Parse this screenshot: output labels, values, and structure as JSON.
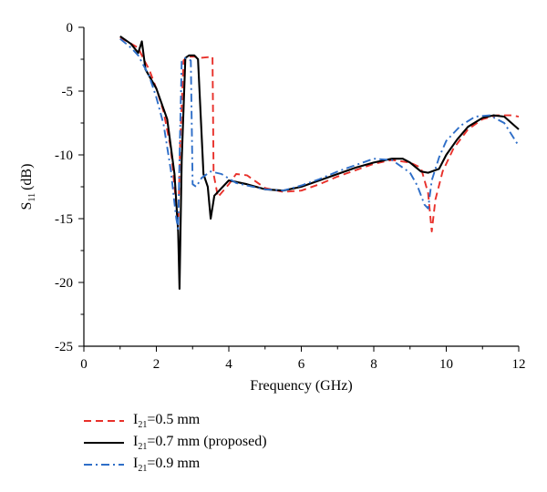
{
  "chart_data": {
    "type": "line",
    "xlabel": "Frequency (GHz)",
    "ylabel_main": "S",
    "ylabel_sub": "11",
    "ylabel_unit": "(dB)",
    "xlim": [
      0,
      12
    ],
    "ylim": [
      -25,
      0
    ],
    "xticks": [
      0,
      2,
      4,
      6,
      8,
      10,
      12
    ],
    "yticks": [
      0,
      -5,
      -10,
      -15,
      -20,
      -25
    ],
    "grid": false,
    "legend_position": "bottom-left",
    "series": [
      {
        "name_prefix": "I",
        "name_sub": "21",
        "name_suffix": "=0.5 mm",
        "color": "#e8302a",
        "dash": "dashed",
        "x": [
          1.0,
          1.5,
          1.65,
          1.8,
          2.0,
          2.2,
          2.4,
          2.55,
          2.6,
          2.66,
          2.75,
          2.85,
          2.95,
          3.05,
          3.2,
          3.55,
          3.58,
          3.7,
          4.0,
          4.2,
          4.5,
          5.0,
          5.5,
          6.0,
          6.5,
          7.0,
          7.5,
          8.0,
          8.5,
          9.0,
          9.3,
          9.5,
          9.6,
          9.7,
          9.9,
          10.2,
          10.6,
          11.0,
          11.4,
          11.8,
          12.0
        ],
        "y": [
          -0.8,
          -1.6,
          -2.5,
          -3.3,
          -4.8,
          -6.6,
          -9.5,
          -14.0,
          -15.6,
          -9.0,
          -2.6,
          -2.3,
          -2.3,
          -2.3,
          -2.4,
          -2.3,
          -11.5,
          -13.3,
          -12.3,
          -11.5,
          -11.6,
          -12.6,
          -12.9,
          -12.8,
          -12.3,
          -11.7,
          -11.2,
          -10.7,
          -10.4,
          -10.6,
          -11.0,
          -13.0,
          -16.0,
          -13.5,
          -11.3,
          -9.5,
          -8.0,
          -7.2,
          -6.9,
          -6.9,
          -7.0
        ]
      },
      {
        "name_prefix": "I",
        "name_sub": "21",
        "name_suffix": "=0.7 mm (proposed)",
        "color": "#000000",
        "dash": "solid",
        "x": [
          1.0,
          1.3,
          1.5,
          1.6,
          1.7,
          2.0,
          2.3,
          2.5,
          2.6,
          2.64,
          2.7,
          2.8,
          2.9,
          3.05,
          3.15,
          3.3,
          3.42,
          3.5,
          3.6,
          4.0,
          4.5,
          5.0,
          5.5,
          6.0,
          6.5,
          7.0,
          7.5,
          8.0,
          8.5,
          8.8,
          9.0,
          9.3,
          9.5,
          9.7,
          9.8,
          10.0,
          10.3,
          10.6,
          11.0,
          11.3,
          11.6,
          12.0
        ],
        "y": [
          -0.7,
          -1.3,
          -2.0,
          -1.1,
          -3.3,
          -4.8,
          -7.2,
          -11.5,
          -16.0,
          -20.5,
          -10.5,
          -2.4,
          -2.2,
          -2.2,
          -2.5,
          -11.5,
          -12.5,
          -15.0,
          -13.2,
          -12.0,
          -12.3,
          -12.7,
          -12.8,
          -12.5,
          -12.0,
          -11.5,
          -11.0,
          -10.6,
          -10.3,
          -10.3,
          -10.6,
          -11.3,
          -11.4,
          -11.2,
          -11.1,
          -10.0,
          -8.8,
          -7.8,
          -7.1,
          -6.9,
          -7.0,
          -8.0
        ]
      },
      {
        "name_prefix": "I",
        "name_sub": "21",
        "name_suffix": "=0.9 mm",
        "color": "#2e6ec8",
        "dash": "dashdot",
        "x": [
          1.0,
          1.3,
          1.5,
          1.65,
          1.8,
          2.0,
          2.2,
          2.4,
          2.5,
          2.55,
          2.6,
          2.65,
          2.7,
          2.8,
          2.95,
          3.0,
          3.1,
          3.25,
          3.5,
          3.8,
          4.2,
          4.5,
          5.0,
          5.5,
          6.0,
          6.5,
          7.0,
          7.5,
          8.0,
          8.5,
          9.0,
          9.2,
          9.4,
          9.5,
          9.6,
          9.8,
          10.0,
          10.4,
          10.8,
          11.2,
          11.6,
          12.0
        ],
        "y": [
          -0.9,
          -1.6,
          -2.2,
          -3.0,
          -3.8,
          -5.5,
          -7.6,
          -11.2,
          -13.8,
          -15.0,
          -15.8,
          -9.0,
          -2.7,
          -2.4,
          -2.6,
          -12.3,
          -12.5,
          -11.8,
          -11.3,
          -11.5,
          -12.2,
          -12.4,
          -12.7,
          -12.8,
          -12.4,
          -11.9,
          -11.3,
          -10.8,
          -10.3,
          -10.4,
          -11.4,
          -12.4,
          -13.9,
          -14.2,
          -12.0,
          -10.2,
          -8.9,
          -7.7,
          -7.0,
          -6.9,
          -7.5,
          -9.3
        ]
      }
    ]
  }
}
